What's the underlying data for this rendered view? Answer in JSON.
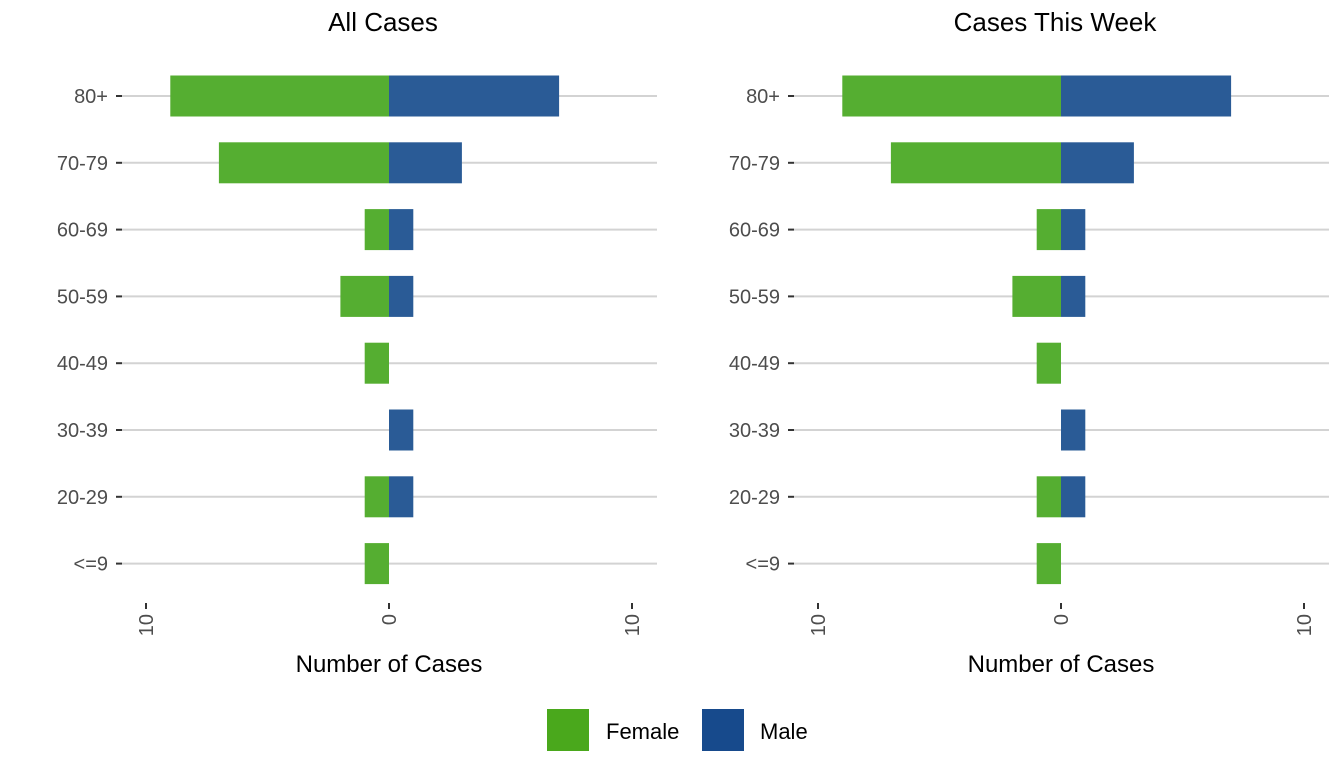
{
  "chart_data": [
    {
      "type": "bar",
      "orientation": "horizontal",
      "layout": "population-pyramid",
      "title": "All Cases",
      "xlabel": "Number of Cases",
      "ylabel": "",
      "categories": [
        "80+",
        "70-79",
        "60-69",
        "50-59",
        "40-49",
        "30-39",
        "20-29",
        "<=9"
      ],
      "series": [
        {
          "name": "Female",
          "direction": "left",
          "values": [
            9,
            7,
            1,
            2,
            1,
            0,
            1,
            1
          ]
        },
        {
          "name": "Male",
          "direction": "right",
          "values": [
            7,
            3,
            1,
            1,
            0,
            1,
            1,
            0
          ]
        }
      ],
      "xlim": [
        -11,
        11
      ],
      "xticks": [
        -10,
        0,
        10
      ],
      "xtick_labels": [
        "10",
        "0",
        "10"
      ],
      "grid": true
    },
    {
      "type": "bar",
      "orientation": "horizontal",
      "layout": "population-pyramid",
      "title": "Cases This Week",
      "xlabel": "Number of Cases",
      "ylabel": "",
      "categories": [
        "80+",
        "70-79",
        "60-69",
        "50-59",
        "40-49",
        "30-39",
        "20-29",
        "<=9"
      ],
      "series": [
        {
          "name": "Female",
          "direction": "left",
          "values": [
            9,
            7,
            1,
            2,
            1,
            0,
            1,
            1
          ]
        },
        {
          "name": "Male",
          "direction": "right",
          "values": [
            7,
            3,
            1,
            1,
            0,
            1,
            1,
            0
          ]
        }
      ],
      "xlim": [
        -11,
        11
      ],
      "xticks": [
        -10,
        0,
        10
      ],
      "xtick_labels": [
        "10",
        "0",
        "10"
      ],
      "grid": true
    }
  ],
  "legend": {
    "placement": "bottom",
    "items": [
      {
        "label": "Female",
        "color": "#4aa81c"
      },
      {
        "label": "Male",
        "color": "#174a8c"
      }
    ]
  },
  "colors": {
    "female_bar": "#55ae31",
    "male_bar": "#2a5b96"
  }
}
